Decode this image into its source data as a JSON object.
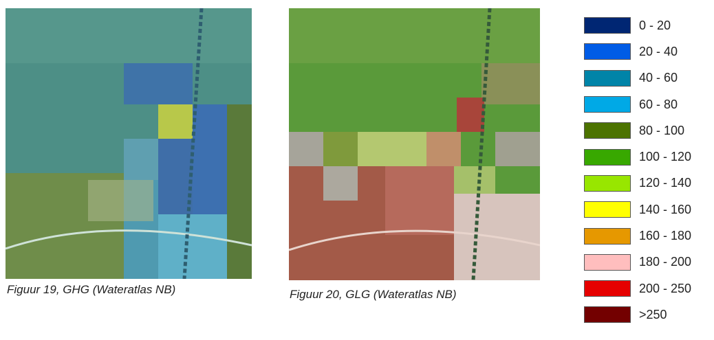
{
  "figures": [
    {
      "caption": "Figuur 19, GHG (Wateratlas NB)"
    },
    {
      "caption": "Figuur 20, GLG (Wateratlas NB)"
    }
  ],
  "legend": [
    {
      "label": "0 - 20",
      "color": "#002673"
    },
    {
      "label": "20 - 40",
      "color": "#005ce6"
    },
    {
      "label": "40 - 60",
      "color": "#0084a8"
    },
    {
      "label": "60 - 80",
      "color": "#00a9e6"
    },
    {
      "label": "80 - 100",
      "color": "#4c7300"
    },
    {
      "label": "100 - 120",
      "color": "#38a800"
    },
    {
      "label": "120 - 140",
      "color": "#98e600"
    },
    {
      "label": "140 - 160",
      "color": "#ffff00"
    },
    {
      "label": "160 - 180",
      "color": "#e69800"
    },
    {
      "label": "180 - 200",
      "color": "#ffbebe"
    },
    {
      "label": "200 - 250",
      "color": "#e60000"
    },
    {
      "label": ">250",
      "color": "#730000"
    }
  ]
}
